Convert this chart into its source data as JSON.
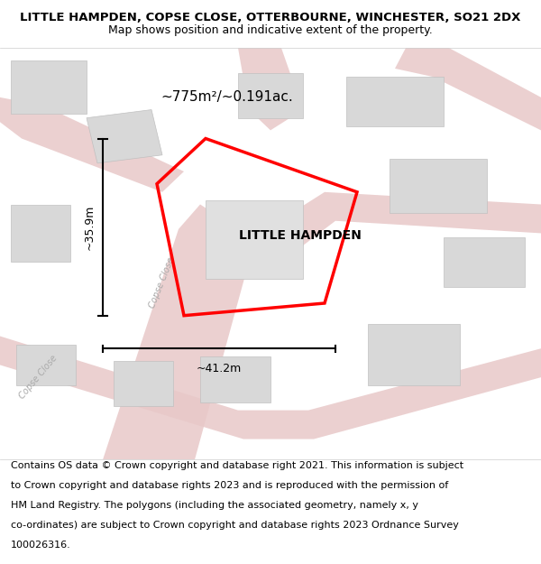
{
  "title_line1": "LITTLE HAMPDEN, COPSE CLOSE, OTTERBOURNE, WINCHESTER, SO21 2DX",
  "title_line2": "Map shows position and indicative extent of the property.",
  "area_label": "~775m²/~0.191ac.",
  "property_name": "LITTLE HAMPDEN",
  "dim_width": "~41.2m",
  "dim_height": "~35.9m",
  "road_label1": "Copse Close",
  "road_label2": "Copse Close",
  "footer_lines": [
    "Contains OS data © Crown copyright and database right 2021. This information is subject",
    "to Crown copyright and database rights 2023 and is reproduced with the permission of",
    "HM Land Registry. The polygons (including the associated geometry, namely x, y",
    "co-ordinates) are subject to Crown copyright and database rights 2023 Ordnance Survey",
    "100026316."
  ],
  "bg_color": "#ffffff",
  "map_bg": "#f8f0f0",
  "road_color": "#e8c8c8",
  "building_color": "#d8d8d8",
  "building_edge_color": "#c0c0c0",
  "property_outline_color": "#ff0000",
  "title_fontsize": 9.5,
  "subtitle_fontsize": 9,
  "footer_fontsize": 8
}
